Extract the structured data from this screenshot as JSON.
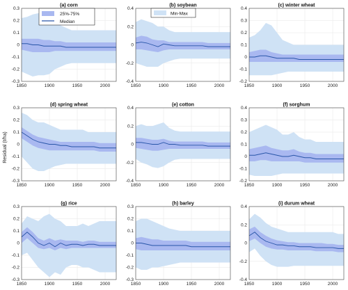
{
  "chart_data": {
    "type": "area",
    "ylabel": "Residual (t/ha)",
    "xlim": [
      1850,
      2020
    ],
    "x_ticks": [
      1850,
      1900,
      1950,
      2000
    ],
    "colors": {
      "minmax": "#cfe2f5",
      "iqr": "#a9b8f0",
      "median": "#2855a8"
    },
    "legend": {
      "iqr_label": "25%-75%",
      "median_label": "Median",
      "minmax_label": "Min-Max"
    },
    "panels": [
      {
        "title": "(a) corn",
        "ylim": [
          -0.3,
          0.3
        ],
        "yticks": [
          "0.3",
          "0.2",
          "0.1",
          "0",
          "-0.1",
          "-0.2",
          "-0.3"
        ],
        "x": [
          1850,
          1860,
          1870,
          1880,
          1890,
          1900,
          1910,
          1920,
          1930,
          1940,
          1950,
          1960,
          1970,
          1980,
          1990,
          2000,
          2010,
          2020
        ],
        "median": [
          0.01,
          0.01,
          0.0,
          0.0,
          -0.01,
          -0.01,
          -0.01,
          -0.01,
          -0.02,
          -0.02,
          -0.02,
          -0.02,
          -0.02,
          -0.02,
          -0.02,
          -0.02,
          -0.02,
          -0.02
        ],
        "q25": [
          -0.04,
          -0.05,
          -0.06,
          -0.06,
          -0.06,
          -0.06,
          -0.05,
          -0.05,
          -0.05,
          -0.05,
          -0.05,
          -0.05,
          -0.05,
          -0.05,
          -0.05,
          -0.05,
          -0.05,
          -0.05
        ],
        "q75": [
          0.05,
          0.05,
          0.05,
          0.05,
          0.04,
          0.04,
          0.03,
          0.03,
          0.02,
          0.02,
          0.02,
          0.02,
          0.02,
          0.02,
          0.02,
          0.02,
          0.02,
          0.02
        ],
        "min": [
          -0.22,
          -0.24,
          -0.26,
          -0.25,
          -0.25,
          -0.24,
          -0.2,
          -0.18,
          -0.16,
          -0.15,
          -0.15,
          -0.15,
          -0.15,
          -0.15,
          -0.15,
          -0.15,
          -0.15,
          -0.15
        ],
        "max": [
          0.22,
          0.23,
          0.25,
          0.26,
          0.26,
          0.22,
          0.18,
          0.16,
          0.14,
          0.12,
          0.12,
          0.12,
          0.12,
          0.12,
          0.12,
          0.12,
          0.12,
          0.12
        ]
      },
      {
        "title": "(b) soybean",
        "ylim": [
          -0.4,
          0.4
        ],
        "yticks": [
          "0.4",
          "0.2",
          "0",
          "-0.2",
          "-0.4"
        ],
        "x": [
          1850,
          1860,
          1870,
          1880,
          1890,
          1900,
          1910,
          1920,
          1930,
          1940,
          1950,
          1960,
          1970,
          1980,
          1990,
          2000,
          2010,
          2020
        ],
        "median": [
          0.02,
          0.03,
          0.02,
          0.0,
          -0.02,
          0.01,
          0.0,
          -0.01,
          -0.01,
          -0.01,
          -0.01,
          -0.01,
          -0.01,
          -0.02,
          -0.02,
          -0.02,
          -0.02,
          -0.02
        ],
        "q25": [
          -0.05,
          -0.05,
          -0.06,
          -0.07,
          -0.08,
          -0.06,
          -0.05,
          -0.05,
          -0.05,
          -0.05,
          -0.05,
          -0.05,
          -0.05,
          -0.05,
          -0.05,
          -0.05,
          -0.05,
          -0.05
        ],
        "q75": [
          0.08,
          0.1,
          0.09,
          0.06,
          0.05,
          0.05,
          0.03,
          0.03,
          0.03,
          0.03,
          0.03,
          0.03,
          0.03,
          0.02,
          0.02,
          0.02,
          0.02,
          0.02
        ],
        "min": [
          -0.2,
          -0.22,
          -0.24,
          -0.24,
          -0.24,
          -0.2,
          -0.18,
          -0.16,
          -0.15,
          -0.15,
          -0.15,
          -0.15,
          -0.15,
          -0.15,
          -0.15,
          -0.15,
          -0.15,
          -0.15
        ],
        "max": [
          0.25,
          0.28,
          0.26,
          0.24,
          0.2,
          0.2,
          0.16,
          0.14,
          0.14,
          0.14,
          0.14,
          0.14,
          0.14,
          0.14,
          0.14,
          0.14,
          0.14,
          0.14
        ]
      },
      {
        "title": "(c) winter wheat",
        "ylim": [
          -0.2,
          0.4
        ],
        "yticks": [
          "0.4",
          "0.3",
          "0.2",
          "0.1",
          "0",
          "-0.1",
          "-0.2"
        ],
        "x": [
          1850,
          1860,
          1870,
          1880,
          1890,
          1900,
          1910,
          1920,
          1930,
          1940,
          1950,
          1960,
          1970,
          1980,
          1990,
          2000,
          2010,
          2020
        ],
        "median": [
          0.0,
          0.0,
          0.01,
          0.01,
          0.0,
          -0.01,
          -0.01,
          -0.01,
          -0.01,
          -0.02,
          -0.02,
          -0.02,
          -0.02,
          -0.02,
          -0.02,
          -0.02,
          -0.02,
          -0.02
        ],
        "q25": [
          -0.04,
          -0.04,
          -0.04,
          -0.04,
          -0.04,
          -0.04,
          -0.04,
          -0.04,
          -0.04,
          -0.04,
          -0.04,
          -0.04,
          -0.04,
          -0.04,
          -0.04,
          -0.04,
          -0.04,
          -0.04
        ],
        "q75": [
          0.04,
          0.05,
          0.06,
          0.06,
          0.04,
          0.03,
          0.02,
          0.02,
          0.02,
          0.02,
          0.02,
          0.02,
          0.02,
          0.02,
          0.02,
          0.02,
          0.02,
          0.02
        ],
        "min": [
          -0.15,
          -0.15,
          -0.15,
          -0.15,
          -0.15,
          -0.14,
          -0.13,
          -0.12,
          -0.12,
          -0.12,
          -0.12,
          -0.12,
          -0.12,
          -0.12,
          -0.12,
          -0.12,
          -0.12,
          -0.12
        ],
        "max": [
          0.16,
          0.18,
          0.22,
          0.28,
          0.26,
          0.2,
          0.14,
          0.12,
          0.1,
          0.1,
          0.1,
          0.1,
          0.1,
          0.1,
          0.1,
          0.1,
          0.1,
          0.1
        ]
      },
      {
        "title": "(d) spring wheat",
        "ylim": [
          -0.3,
          0.3
        ],
        "yticks": [
          "0.3",
          "0.2",
          "0.1",
          "0",
          "-0.1",
          "-0.2",
          "-0.3"
        ],
        "x": [
          1850,
          1860,
          1870,
          1880,
          1890,
          1900,
          1910,
          1920,
          1930,
          1940,
          1950,
          1960,
          1970,
          1980,
          1990,
          2000,
          2010,
          2020
        ],
        "median": [
          0.1,
          0.07,
          0.04,
          0.02,
          0.01,
          0.0,
          0.0,
          -0.01,
          -0.01,
          -0.02,
          -0.02,
          -0.02,
          -0.02,
          -0.02,
          -0.03,
          -0.03,
          -0.03,
          -0.03
        ],
        "q25": [
          0.05,
          0.02,
          -0.01,
          -0.03,
          -0.04,
          -0.05,
          -0.05,
          -0.05,
          -0.05,
          -0.05,
          -0.05,
          -0.05,
          -0.05,
          -0.05,
          -0.06,
          -0.06,
          -0.06,
          -0.06
        ],
        "q75": [
          0.14,
          0.11,
          0.08,
          0.06,
          0.05,
          0.04,
          0.03,
          0.02,
          0.02,
          0.02,
          0.02,
          0.02,
          0.02,
          0.02,
          0.01,
          0.01,
          0.01,
          0.01
        ],
        "min": [
          -0.1,
          -0.15,
          -0.2,
          -0.22,
          -0.22,
          -0.2,
          -0.18,
          -0.17,
          -0.16,
          -0.16,
          -0.16,
          -0.16,
          -0.16,
          -0.16,
          -0.16,
          -0.16,
          -0.16,
          -0.16
        ],
        "max": [
          0.26,
          0.24,
          0.2,
          0.18,
          0.18,
          0.16,
          0.14,
          0.12,
          0.12,
          0.12,
          0.12,
          0.12,
          0.1,
          0.1,
          0.1,
          0.1,
          0.1,
          0.1
        ]
      },
      {
        "title": "(e) cotton",
        "ylim": [
          -0.4,
          0.4
        ],
        "yticks": [
          "0.4",
          "0.2",
          "0",
          "-0.2",
          "-0.4"
        ],
        "x": [
          1850,
          1860,
          1870,
          1880,
          1890,
          1900,
          1910,
          1920,
          1930,
          1940,
          1950,
          1960,
          1970,
          1980,
          1990,
          2000,
          2010,
          2020
        ],
        "median": [
          0.02,
          0.02,
          0.01,
          0.0,
          0.0,
          0.02,
          0.0,
          0.0,
          -0.01,
          -0.01,
          -0.01,
          -0.01,
          -0.01,
          -0.02,
          -0.02,
          -0.02,
          -0.02,
          -0.02
        ],
        "q25": [
          -0.04,
          -0.05,
          -0.06,
          -0.07,
          -0.07,
          -0.06,
          -0.05,
          -0.05,
          -0.05,
          -0.05,
          -0.05,
          -0.05,
          -0.05,
          -0.05,
          -0.05,
          -0.05,
          -0.05,
          -0.05
        ],
        "q75": [
          0.07,
          0.07,
          0.06,
          0.05,
          0.05,
          0.06,
          0.04,
          0.03,
          0.03,
          0.03,
          0.03,
          0.03,
          0.03,
          0.02,
          0.02,
          0.02,
          0.02,
          0.02
        ],
        "min": [
          -0.16,
          -0.2,
          -0.22,
          -0.25,
          -0.26,
          -0.24,
          -0.2,
          -0.17,
          -0.16,
          -0.16,
          -0.16,
          -0.16,
          -0.16,
          -0.16,
          -0.16,
          -0.16,
          -0.16,
          -0.16
        ],
        "max": [
          0.2,
          0.22,
          0.2,
          0.2,
          0.22,
          0.24,
          0.18,
          0.15,
          0.14,
          0.14,
          0.14,
          0.14,
          0.14,
          0.14,
          0.14,
          0.14,
          0.14,
          0.14
        ]
      },
      {
        "title": "(f) sorghum",
        "ylim": [
          -0.2,
          0.4
        ],
        "yticks": [
          "0.4",
          "0.3",
          "0.2",
          "0.1",
          "0",
          "-0.1",
          "-0.2"
        ],
        "x": [
          1850,
          1860,
          1870,
          1880,
          1890,
          1900,
          1910,
          1920,
          1930,
          1940,
          1950,
          1960,
          1970,
          1980,
          1990,
          2000,
          2010,
          2020
        ],
        "median": [
          0.01,
          0.01,
          0.02,
          0.03,
          0.02,
          0.01,
          0.0,
          0.0,
          0.01,
          0.0,
          -0.01,
          -0.01,
          -0.02,
          -0.02,
          -0.02,
          -0.02,
          -0.02,
          -0.02
        ],
        "q25": [
          -0.04,
          -0.04,
          -0.03,
          -0.03,
          -0.04,
          -0.04,
          -0.04,
          -0.04,
          -0.04,
          -0.04,
          -0.05,
          -0.05,
          -0.05,
          -0.05,
          -0.05,
          -0.05,
          -0.05,
          -0.05
        ],
        "q75": [
          0.06,
          0.07,
          0.08,
          0.09,
          0.07,
          0.06,
          0.05,
          0.05,
          0.06,
          0.04,
          0.03,
          0.03,
          0.02,
          0.02,
          0.02,
          0.02,
          0.02,
          0.02
        ],
        "min": [
          -0.15,
          -0.16,
          -0.16,
          -0.16,
          -0.16,
          -0.15,
          -0.14,
          -0.14,
          -0.14,
          -0.14,
          -0.14,
          -0.14,
          -0.14,
          -0.14,
          -0.14,
          -0.14,
          -0.14,
          -0.14
        ],
        "max": [
          0.2,
          0.22,
          0.24,
          0.26,
          0.24,
          0.22,
          0.18,
          0.18,
          0.2,
          0.16,
          0.14,
          0.14,
          0.12,
          0.12,
          0.12,
          0.12,
          0.12,
          0.12
        ]
      },
      {
        "title": "(g) rice",
        "ylim": [
          -0.3,
          0.3
        ],
        "yticks": [
          "0.3",
          "0.2",
          "0.1",
          "0",
          "-0.1",
          "-0.2",
          "-0.3"
        ],
        "x": [
          1850,
          1860,
          1870,
          1880,
          1890,
          1900,
          1910,
          1920,
          1930,
          1940,
          1950,
          1960,
          1970,
          1980,
          1990,
          2000,
          2010,
          2020
        ],
        "median": [
          0.05,
          0.09,
          0.05,
          0.0,
          -0.02,
          0.0,
          -0.03,
          0.0,
          -0.02,
          -0.01,
          -0.01,
          -0.02,
          -0.01,
          -0.01,
          -0.02,
          -0.02,
          -0.02,
          -0.02
        ],
        "q25": [
          0.0,
          0.04,
          0.0,
          -0.04,
          -0.05,
          -0.04,
          -0.06,
          -0.04,
          -0.05,
          -0.04,
          -0.04,
          -0.04,
          -0.04,
          -0.04,
          -0.04,
          -0.04,
          -0.04,
          -0.04
        ],
        "q75": [
          0.09,
          0.13,
          0.09,
          0.04,
          0.02,
          0.04,
          0.02,
          0.03,
          0.02,
          0.02,
          0.02,
          0.01,
          0.02,
          0.02,
          0.01,
          0.01,
          0.01,
          0.01
        ],
        "min": [
          -0.1,
          -0.08,
          -0.14,
          -0.2,
          -0.24,
          -0.28,
          -0.24,
          -0.26,
          -0.2,
          -0.18,
          -0.18,
          -0.2,
          -0.2,
          -0.22,
          -0.24,
          -0.24,
          -0.24,
          -0.24
        ],
        "max": [
          0.16,
          0.22,
          0.2,
          0.18,
          0.22,
          0.24,
          0.2,
          0.18,
          0.14,
          0.14,
          0.14,
          0.16,
          0.14,
          0.16,
          0.18,
          0.18,
          0.18,
          0.18
        ]
      },
      {
        "title": "(h) barley",
        "ylim": [
          -0.3,
          0.3
        ],
        "yticks": [
          "0.3",
          "0.2",
          "0.1",
          "0",
          "-0.1",
          "-0.2",
          "-0.3"
        ],
        "x": [
          1850,
          1860,
          1870,
          1880,
          1890,
          1900,
          1910,
          1920,
          1930,
          1940,
          1950,
          1960,
          1970,
          1980,
          1990,
          2000,
          2010,
          2020
        ],
        "median": [
          0.0,
          0.0,
          -0.01,
          -0.02,
          -0.02,
          -0.02,
          -0.02,
          -0.02,
          -0.02,
          -0.02,
          -0.03,
          -0.03,
          -0.03,
          -0.03,
          -0.03,
          -0.03,
          -0.03,
          -0.03
        ],
        "q25": [
          -0.05,
          -0.06,
          -0.06,
          -0.06,
          -0.06,
          -0.06,
          -0.06,
          -0.06,
          -0.06,
          -0.06,
          -0.06,
          -0.06,
          -0.06,
          -0.06,
          -0.06,
          -0.06,
          -0.06,
          -0.06
        ],
        "q75": [
          0.04,
          0.05,
          0.04,
          0.03,
          0.03,
          0.02,
          0.02,
          0.02,
          0.02,
          0.02,
          0.01,
          0.01,
          0.01,
          0.01,
          0.01,
          0.01,
          0.01,
          0.01
        ],
        "min": [
          -0.2,
          -0.22,
          -0.22,
          -0.2,
          -0.2,
          -0.19,
          -0.18,
          -0.17,
          -0.16,
          -0.16,
          -0.16,
          -0.16,
          -0.16,
          -0.16,
          -0.16,
          -0.16,
          -0.16,
          -0.16
        ],
        "max": [
          0.18,
          0.2,
          0.2,
          0.18,
          0.16,
          0.14,
          0.12,
          0.11,
          0.1,
          0.1,
          0.1,
          0.1,
          0.1,
          0.1,
          0.1,
          0.1,
          0.1,
          0.1
        ]
      },
      {
        "title": "(i) durum wheat",
        "ylim": [
          -0.4,
          0.4
        ],
        "yticks": [
          "0.4",
          "0.2",
          "0",
          "-0.2",
          "-0.4"
        ],
        "x": [
          1850,
          1860,
          1870,
          1880,
          1890,
          1900,
          1910,
          1920,
          1930,
          1940,
          1950,
          1960,
          1970,
          1980,
          1990,
          2000,
          2010,
          2020
        ],
        "median": [
          0.08,
          0.12,
          0.06,
          0.02,
          0.0,
          -0.02,
          -0.02,
          -0.03,
          -0.03,
          -0.04,
          -0.04,
          -0.04,
          -0.05,
          -0.05,
          -0.05,
          -0.05,
          -0.06,
          -0.06
        ],
        "q25": [
          0.02,
          0.05,
          0.0,
          -0.04,
          -0.06,
          -0.07,
          -0.07,
          -0.08,
          -0.08,
          -0.08,
          -0.08,
          -0.08,
          -0.09,
          -0.09,
          -0.09,
          -0.09,
          -0.1,
          -0.1
        ],
        "q75": [
          0.15,
          0.18,
          0.12,
          0.08,
          0.05,
          0.03,
          0.02,
          0.01,
          0.01,
          0.0,
          0.0,
          0.0,
          0.0,
          0.0,
          -0.01,
          -0.01,
          -0.02,
          -0.02
        ],
        "min": [
          -0.1,
          -0.06,
          -0.14,
          -0.2,
          -0.24,
          -0.26,
          -0.26,
          -0.26,
          -0.25,
          -0.25,
          -0.25,
          -0.25,
          -0.25,
          -0.25,
          -0.25,
          -0.25,
          -0.25,
          -0.25
        ],
        "max": [
          0.26,
          0.32,
          0.28,
          0.22,
          0.18,
          0.16,
          0.14,
          0.12,
          0.12,
          0.12,
          0.12,
          0.12,
          0.12,
          0.12,
          0.12,
          0.12,
          0.1,
          0.1
        ]
      }
    ]
  }
}
